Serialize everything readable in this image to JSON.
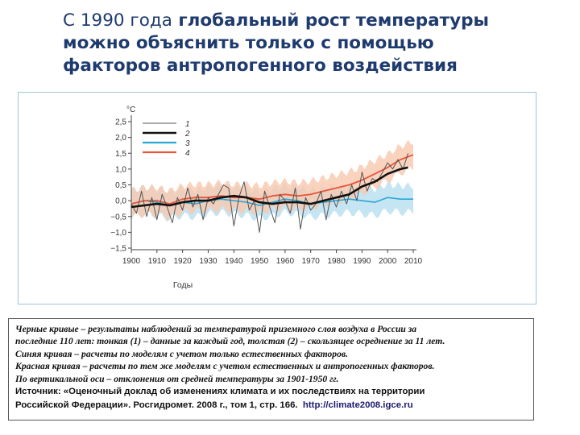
{
  "slide": {
    "title_lead": "С 1990 года",
    "title_rest": " глобальный рост температуры",
    "title_line2": "можно объяснить только с помощью",
    "title_line3": "факторов антропогенного воздействия"
  },
  "chart_data": {
    "type": "line",
    "unit_label": "°C",
    "xlabel": "Годы",
    "xlim": [
      1900,
      2010
    ],
    "ylim": [
      -1.5,
      2.5
    ],
    "x_ticks": [
      "1900",
      "1910",
      "1920",
      "1930",
      "1940",
      "1950",
      "1960",
      "1970",
      "1980",
      "1990",
      "2000",
      "2010"
    ],
    "y_ticks": [
      "2,5",
      "2,0",
      "1,5",
      "1,0",
      "0,5",
      "0,0",
      "−0,5",
      "−1,0",
      "−1,5"
    ],
    "grid": false,
    "legend_position": "top-left",
    "colors": {
      "annual": "#555555",
      "smoothed": "#111111",
      "natural": "#29a8d8",
      "combined": "#e8553a",
      "natural_band": "#b8def0",
      "combined_band": "#f8c8ae"
    },
    "series": [
      {
        "name": "1",
        "style": "thin-gray",
        "x": [
          1900,
          1902,
          1904,
          1906,
          1908,
          1910,
          1912,
          1914,
          1916,
          1918,
          1920,
          1922,
          1924,
          1926,
          1928,
          1930,
          1932,
          1934,
          1936,
          1938,
          1940,
          1942,
          1944,
          1946,
          1948,
          1950,
          1952,
          1954,
          1956,
          1958,
          1960,
          1962,
          1964,
          1966,
          1968,
          1970,
          1972,
          1974,
          1976,
          1978,
          1980,
          1982,
          1984,
          1986,
          1988,
          1990,
          1992,
          1994,
          1996,
          1998,
          2000,
          2002,
          2004,
          2006,
          2008
        ],
        "y": [
          -0.1,
          -0.4,
          0.3,
          -0.5,
          0.1,
          -0.6,
          0.2,
          -0.2,
          -0.7,
          0.1,
          -0.3,
          0.4,
          -0.2,
          0.2,
          -0.6,
          0.1,
          -0.1,
          0.2,
          0.5,
          0.4,
          -0.8,
          0.1,
          0.6,
          -0.3,
          0.0,
          -1.0,
          0.3,
          -0.2,
          -0.7,
          0.2,
          0.0,
          -0.4,
          0.4,
          -0.9,
          0.1,
          -0.3,
          -0.1,
          0.3,
          -0.6,
          0.2,
          -0.2,
          0.3,
          -0.1,
          0.5,
          0.0,
          0.9,
          0.3,
          0.7,
          0.6,
          0.9,
          1.2,
          1.0,
          1.3,
          1.0,
          1.5
        ]
      },
      {
        "name": "2",
        "style": "thick-black",
        "x": [
          1900,
          1905,
          1910,
          1915,
          1920,
          1925,
          1930,
          1935,
          1940,
          1945,
          1950,
          1955,
          1960,
          1965,
          1970,
          1975,
          1980,
          1985,
          1990,
          1995,
          2000,
          2005,
          2008
        ],
        "y": [
          -0.2,
          -0.15,
          -0.1,
          -0.15,
          -0.05,
          0.0,
          0.0,
          0.1,
          0.15,
          0.1,
          -0.05,
          -0.1,
          -0.05,
          -0.05,
          -0.1,
          0.0,
          0.1,
          0.2,
          0.45,
          0.6,
          0.85,
          1.0,
          1.05
        ]
      },
      {
        "name": "3",
        "style": "blue",
        "x": [
          1900,
          1905,
          1910,
          1915,
          1920,
          1925,
          1930,
          1935,
          1940,
          1945,
          1950,
          1955,
          1960,
          1965,
          1970,
          1975,
          1980,
          1985,
          1990,
          1995,
          2000,
          2005,
          2010
        ],
        "y": [
          -0.1,
          0.0,
          -0.05,
          -0.15,
          -0.05,
          -0.1,
          0.0,
          0.05,
          0.0,
          -0.05,
          -0.15,
          -0.05,
          0.05,
          0.0,
          -0.1,
          -0.05,
          0.0,
          0.05,
          0.0,
          -0.05,
          0.1,
          0.05,
          0.05
        ]
      },
      {
        "name": "4",
        "style": "red",
        "x": [
          1900,
          1905,
          1910,
          1915,
          1920,
          1925,
          1930,
          1935,
          1940,
          1945,
          1950,
          1955,
          1960,
          1965,
          1970,
          1975,
          1980,
          1985,
          1990,
          1995,
          2000,
          2005,
          2010
        ],
        "y": [
          -0.1,
          0.0,
          0.0,
          -0.1,
          0.05,
          0.1,
          0.1,
          0.15,
          0.1,
          0.1,
          0.05,
          0.15,
          0.2,
          0.15,
          0.2,
          0.3,
          0.4,
          0.5,
          0.65,
          0.85,
          1.05,
          1.3,
          1.45
        ]
      }
    ]
  },
  "caption": {
    "line1": "Черные кривые – результаты наблюдений за температурой приземного слоя воздуха в России за",
    "line2": "последние 110 лет: тонкая (1) – данные за каждый год, толстая (2) – скользящее осреднение за 11 лет.",
    "line3": "Синяя кривая – расчеты по моделям с учетом только естественных факторов.",
    "line4": "Красная кривая – расчеты по тем же моделям с учетом естественных и антропогенных факторов.",
    "line5": "По вертикальной оси – отклонения от средней температуры за 1901-1950 гг.",
    "source_line1": "Источник: «Оценочный доклад об изменениях климата и их последствиях на территории",
    "source_line2": "Российской Федерации». Росгидромет. 2008 г., том 1, стр. 166.",
    "source_url": "http://climate2008.igce.ru"
  }
}
